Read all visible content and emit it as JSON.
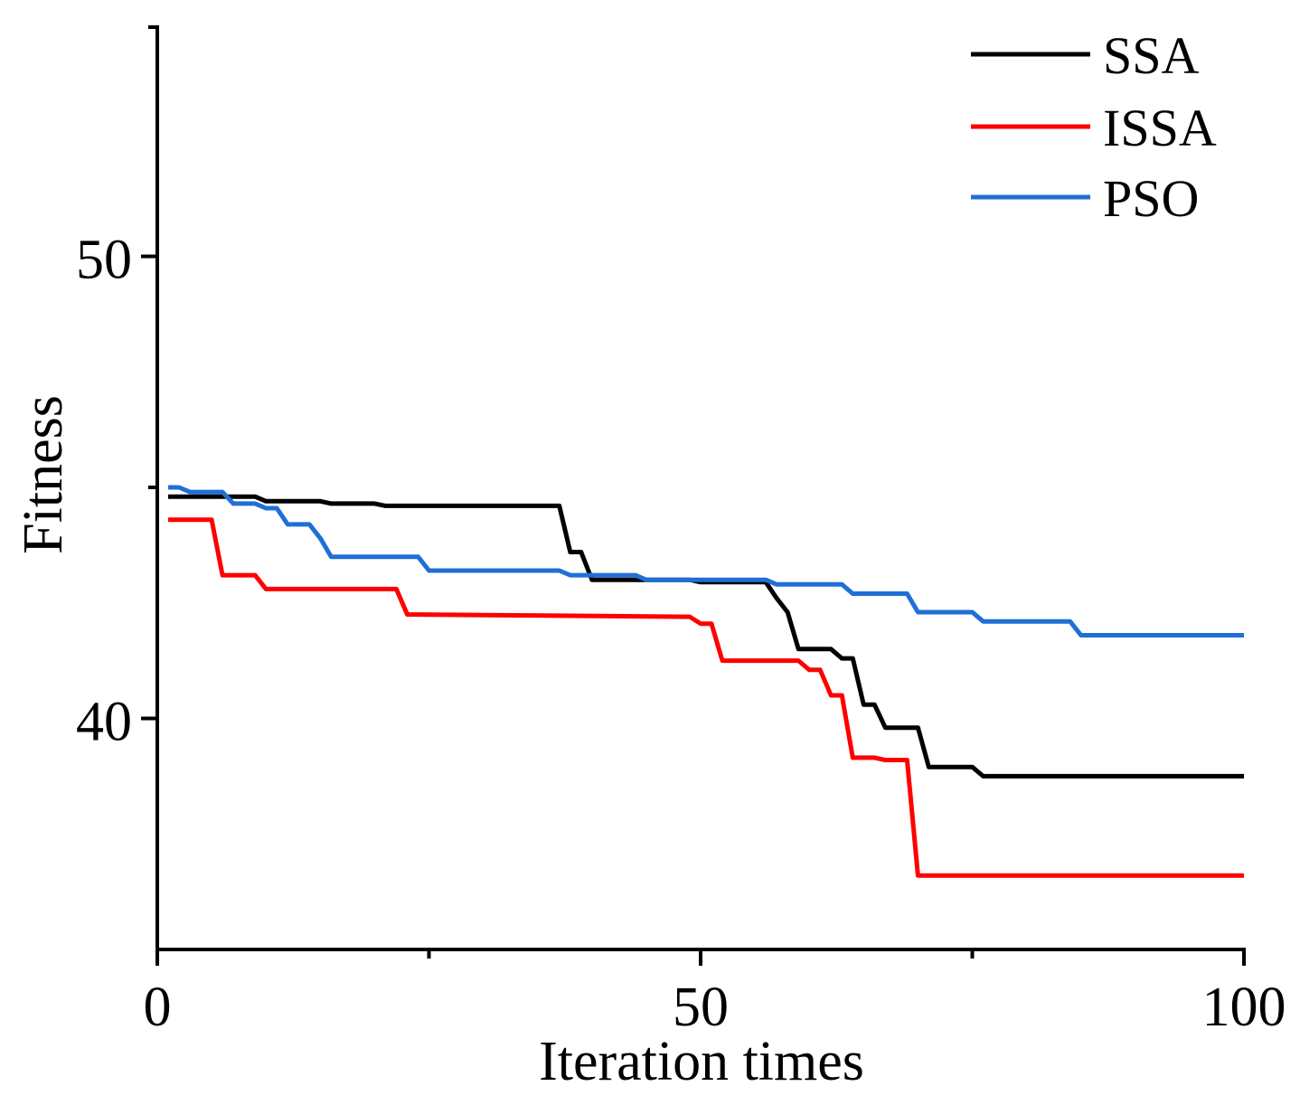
{
  "chart_data": {
    "type": "line",
    "title": "",
    "xlabel": "Iteration times",
    "ylabel": "Fitness",
    "xlim": [
      0,
      100
    ],
    "ylim": [
      35,
      55
    ],
    "x_ticks": [
      0,
      50,
      100
    ],
    "x_minor_ticks": [
      25,
      75
    ],
    "y_ticks": [
      40,
      50
    ],
    "y_minor_ticks": [
      45
    ],
    "legend_position": "top-right",
    "grid": false,
    "series": [
      {
        "name": "SSA",
        "color": "#000000",
        "points": [
          [
            1,
            44.8
          ],
          [
            9,
            44.8
          ],
          [
            10,
            44.7
          ],
          [
            15,
            44.7
          ],
          [
            16,
            44.65
          ],
          [
            20,
            44.65
          ],
          [
            21,
            44.6
          ],
          [
            37,
            44.6
          ],
          [
            38,
            43.6
          ],
          [
            39,
            43.6
          ],
          [
            40,
            43.0
          ],
          [
            49,
            43.0
          ],
          [
            50,
            42.95
          ],
          [
            56,
            42.95
          ],
          [
            57,
            42.6
          ],
          [
            58,
            42.3
          ],
          [
            59,
            41.5
          ],
          [
            62,
            41.5
          ],
          [
            63,
            41.3
          ],
          [
            64,
            41.3
          ],
          [
            65,
            40.3
          ],
          [
            66,
            40.3
          ],
          [
            67,
            39.8
          ],
          [
            70,
            39.8
          ],
          [
            71,
            38.95
          ],
          [
            75,
            38.95
          ],
          [
            76,
            38.75
          ],
          [
            100,
            38.75
          ]
        ]
      },
      {
        "name": "ISSA",
        "color": "#ff0000",
        "points": [
          [
            1,
            44.3
          ],
          [
            5,
            44.3
          ],
          [
            6,
            43.1
          ],
          [
            9,
            43.1
          ],
          [
            10,
            42.8
          ],
          [
            22,
            42.8
          ],
          [
            23,
            42.25
          ],
          [
            49,
            42.2
          ],
          [
            50,
            42.05
          ],
          [
            51,
            42.05
          ],
          [
            52,
            41.25
          ],
          [
            59,
            41.25
          ],
          [
            60,
            41.05
          ],
          [
            61,
            41.05
          ],
          [
            62,
            40.5
          ],
          [
            63,
            40.5
          ],
          [
            64,
            39.15
          ],
          [
            66,
            39.15
          ],
          [
            67,
            39.1
          ],
          [
            69,
            39.1
          ],
          [
            70,
            36.6
          ],
          [
            100,
            36.6
          ]
        ]
      },
      {
        "name": "PSO",
        "color": "#1f6fd6",
        "points": [
          [
            1,
            45.0
          ],
          [
            2,
            45.0
          ],
          [
            3,
            44.9
          ],
          [
            6,
            44.9
          ],
          [
            7,
            44.65
          ],
          [
            9,
            44.65
          ],
          [
            10,
            44.55
          ],
          [
            11,
            44.55
          ],
          [
            12,
            44.2
          ],
          [
            14,
            44.2
          ],
          [
            15,
            43.9
          ],
          [
            16,
            43.5
          ],
          [
            24,
            43.5
          ],
          [
            25,
            43.2
          ],
          [
            37,
            43.2
          ],
          [
            38,
            43.1
          ],
          [
            44,
            43.1
          ],
          [
            45,
            43.0
          ],
          [
            56,
            43.0
          ],
          [
            57,
            42.9
          ],
          [
            63,
            42.9
          ],
          [
            64,
            42.7
          ],
          [
            69,
            42.7
          ],
          [
            70,
            42.3
          ],
          [
            75,
            42.3
          ],
          [
            76,
            42.1
          ],
          [
            84,
            42.1
          ],
          [
            85,
            41.8
          ],
          [
            100,
            41.8
          ]
        ]
      }
    ]
  }
}
